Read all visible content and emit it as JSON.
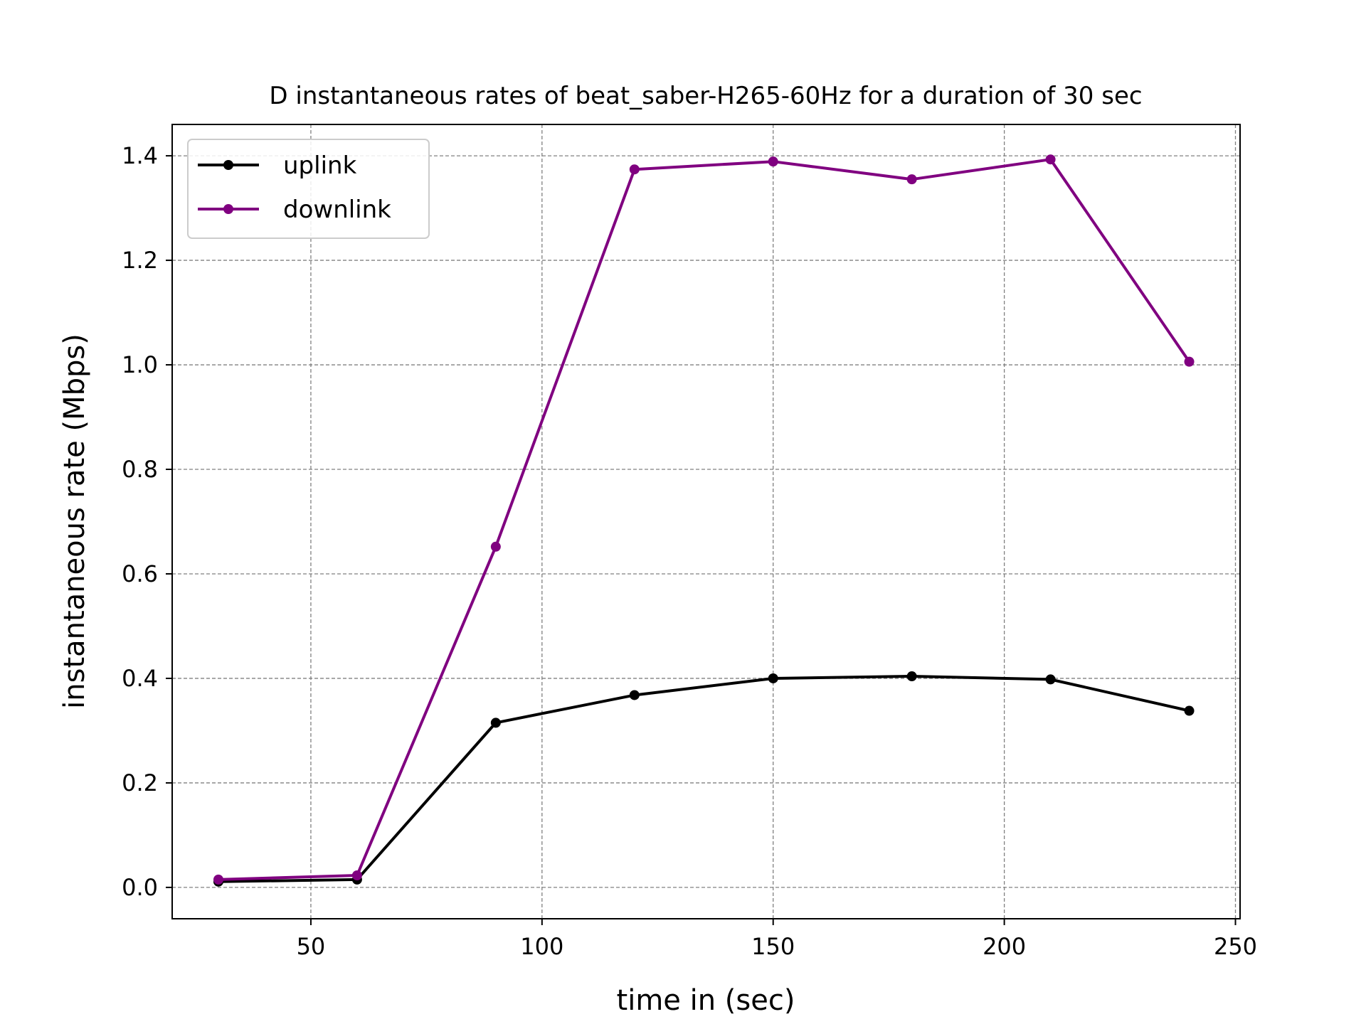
{
  "chart_data": {
    "type": "line",
    "title": "D instantaneous rates of beat_saber-H265-60Hz for a duration of 30 sec",
    "xlabel": "time in (sec)",
    "ylabel": "instantaneous rate (Mbps)",
    "xlim": [
      20,
      251
    ],
    "ylim": [
      -0.06,
      1.46
    ],
    "xticks": [
      50,
      100,
      150,
      200,
      250
    ],
    "xtick_labels": [
      "50",
      "100",
      "150",
      "200",
      "250"
    ],
    "yticks": [
      0.0,
      0.2,
      0.4,
      0.6,
      0.8,
      1.0,
      1.2,
      1.4
    ],
    "ytick_labels": [
      "0.0",
      "0.2",
      "0.4",
      "0.6",
      "0.8",
      "1.0",
      "1.2",
      "1.4"
    ],
    "grid": true,
    "legend_position": "top-left",
    "x": [
      30,
      60,
      90,
      120,
      150,
      180,
      210,
      240
    ],
    "series": [
      {
        "name": "uplink",
        "color": "#000000",
        "values": [
          0.011,
          0.015,
          0.315,
          0.368,
          0.4,
          0.404,
          0.398,
          0.338
        ]
      },
      {
        "name": "downlink",
        "color": "#800080",
        "values": [
          0.015,
          0.023,
          0.652,
          1.374,
          1.389,
          1.355,
          1.393,
          1.006
        ]
      }
    ]
  }
}
